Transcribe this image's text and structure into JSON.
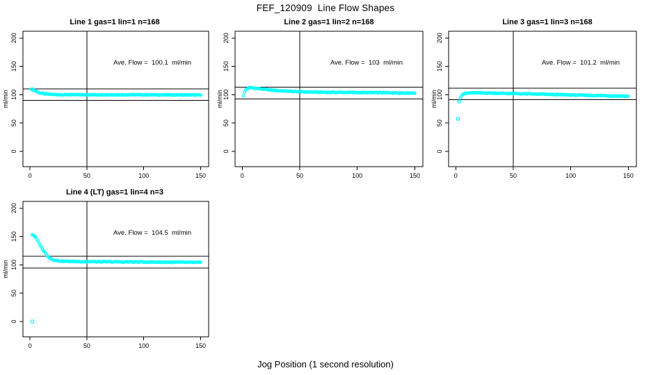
{
  "figure": {
    "title": "FEF_120909  Line Flow Shapes",
    "xlabel": "Jog Position (1 second resolution)",
    "background_color": "#FFFFFF",
    "axis_color": "#000000"
  },
  "chart_data": [
    {
      "type": "scatter",
      "title": "Line 1 gas=1 lin=1 n=168",
      "annotation": "Ave. Flow =  100.1  ml/min",
      "ave_flow_ml_min": 100.1,
      "n": 168,
      "ylabel": "ml/min",
      "xlim": [
        -6.2,
        157
      ],
      "ylim": [
        -27,
        212
      ],
      "xticks": [
        0,
        50,
        100,
        150
      ],
      "yticks": [
        0,
        50,
        100,
        150,
        200
      ],
      "vline_x": 50,
      "hlines": [
        110.1,
        90.1
      ],
      "marker_color": "#00FFFF",
      "series_keypoints": [
        [
          1,
          110
        ],
        [
          2,
          109.5
        ],
        [
          3,
          108.5
        ],
        [
          5,
          106.5
        ],
        [
          7,
          104.5
        ],
        [
          10,
          102.5
        ],
        [
          13,
          101.5
        ],
        [
          17,
          100.7
        ],
        [
          22,
          100.2
        ],
        [
          30,
          100
        ],
        [
          60,
          100
        ],
        [
          100,
          99.9
        ],
        [
          130,
          99.6
        ],
        [
          150,
          99.4
        ]
      ],
      "outlier_points": []
    },
    {
      "type": "scatter",
      "title": "Line 2 gas=1 lin=2 n=168",
      "annotation": "Ave. Flow =  103  ml/min",
      "ave_flow_ml_min": 103,
      "n": 168,
      "ylabel": "ml/min",
      "xlim": [
        -6.2,
        157
      ],
      "ylim": [
        -27,
        212
      ],
      "xticks": [
        0,
        50,
        100,
        150
      ],
      "yticks": [
        0,
        50,
        100,
        150,
        200
      ],
      "vline_x": 50,
      "hlines": [
        113.3,
        92.7
      ],
      "marker_color": "#00FFFF",
      "series_keypoints": [
        [
          1,
          98.5
        ],
        [
          2,
          104
        ],
        [
          3,
          108
        ],
        [
          4,
          110.5
        ],
        [
          6,
          112
        ],
        [
          8,
          112.2
        ],
        [
          11,
          111.5
        ],
        [
          15,
          110.5
        ],
        [
          20,
          109.3
        ],
        [
          26,
          108
        ],
        [
          33,
          107
        ],
        [
          42,
          106
        ],
        [
          50,
          105.2
        ],
        [
          60,
          104.6
        ],
        [
          75,
          104.2
        ],
        [
          95,
          104
        ],
        [
          115,
          103.6
        ],
        [
          135,
          103.3
        ],
        [
          150,
          103
        ]
      ],
      "outlier_points": []
    },
    {
      "type": "scatter",
      "title": "Line 3 gas=1 lin=3 n=168",
      "annotation": "Ave. Flow =  101.2  ml/min",
      "ave_flow_ml_min": 101.2,
      "n": 168,
      "ylabel": "ml/min",
      "xlim": [
        -6.2,
        157
      ],
      "ylim": [
        -27,
        212
      ],
      "xticks": [
        0,
        50,
        100,
        150
      ],
      "yticks": [
        0,
        50,
        100,
        150,
        200
      ],
      "vline_x": 50,
      "hlines": [
        111.3,
        91.1
      ],
      "marker_color": "#00FFFF",
      "series_keypoints": [
        [
          4,
          95
        ],
        [
          5,
          98.5
        ],
        [
          6,
          100.5
        ],
        [
          8,
          102
        ],
        [
          10,
          102.8
        ],
        [
          14,
          103.2
        ],
        [
          20,
          103.2
        ],
        [
          28,
          103
        ],
        [
          36,
          102.6
        ],
        [
          45,
          102.2
        ],
        [
          55,
          101.7
        ],
        [
          70,
          101
        ],
        [
          85,
          100.3
        ],
        [
          100,
          99.6
        ],
        [
          115,
          98.8
        ],
        [
          130,
          98.2
        ],
        [
          150,
          97.4
        ]
      ],
      "outlier_points": [
        [
          2,
          57.5
        ],
        [
          3,
          88
        ]
      ]
    },
    {
      "type": "scatter",
      "title": "Line 4 (LT) gas=1 lin=4 n=3",
      "annotation": "Ave. Flow =  104.5  ml/min",
      "ave_flow_ml_min": 104.5,
      "n": 3,
      "ylabel": "ml/min",
      "xlim": [
        -6.2,
        157
      ],
      "ylim": [
        -27,
        212
      ],
      "xticks": [
        0,
        50,
        100,
        150
      ],
      "yticks": [
        0,
        50,
        100,
        150,
        200
      ],
      "vline_x": 50,
      "hlines": [
        114.95,
        94.05
      ],
      "marker_color": "#00FFFF",
      "series_keypoints": [
        [
          2,
          153.5
        ],
        [
          3,
          152.5
        ],
        [
          4,
          150.5
        ],
        [
          5,
          148
        ],
        [
          6,
          145
        ],
        [
          7,
          141.5
        ],
        [
          8,
          138
        ],
        [
          9,
          134.5
        ],
        [
          10,
          131
        ],
        [
          11,
          128
        ],
        [
          12,
          125
        ],
        [
          13,
          122
        ],
        [
          14,
          119.5
        ],
        [
          15,
          117
        ],
        [
          16,
          115
        ],
        [
          17,
          113
        ],
        [
          18,
          111.5
        ],
        [
          19,
          110.3
        ],
        [
          20,
          109.3
        ],
        [
          22,
          108
        ],
        [
          24,
          107.3
        ],
        [
          27,
          106.7
        ],
        [
          30,
          106.3
        ],
        [
          35,
          106
        ],
        [
          45,
          105.7
        ],
        [
          60,
          105.4
        ],
        [
          80,
          105.2
        ],
        [
          100,
          105
        ],
        [
          120,
          104.7
        ],
        [
          150,
          104.3
        ]
      ],
      "outlier_points": [
        [
          2,
          0
        ]
      ]
    }
  ]
}
